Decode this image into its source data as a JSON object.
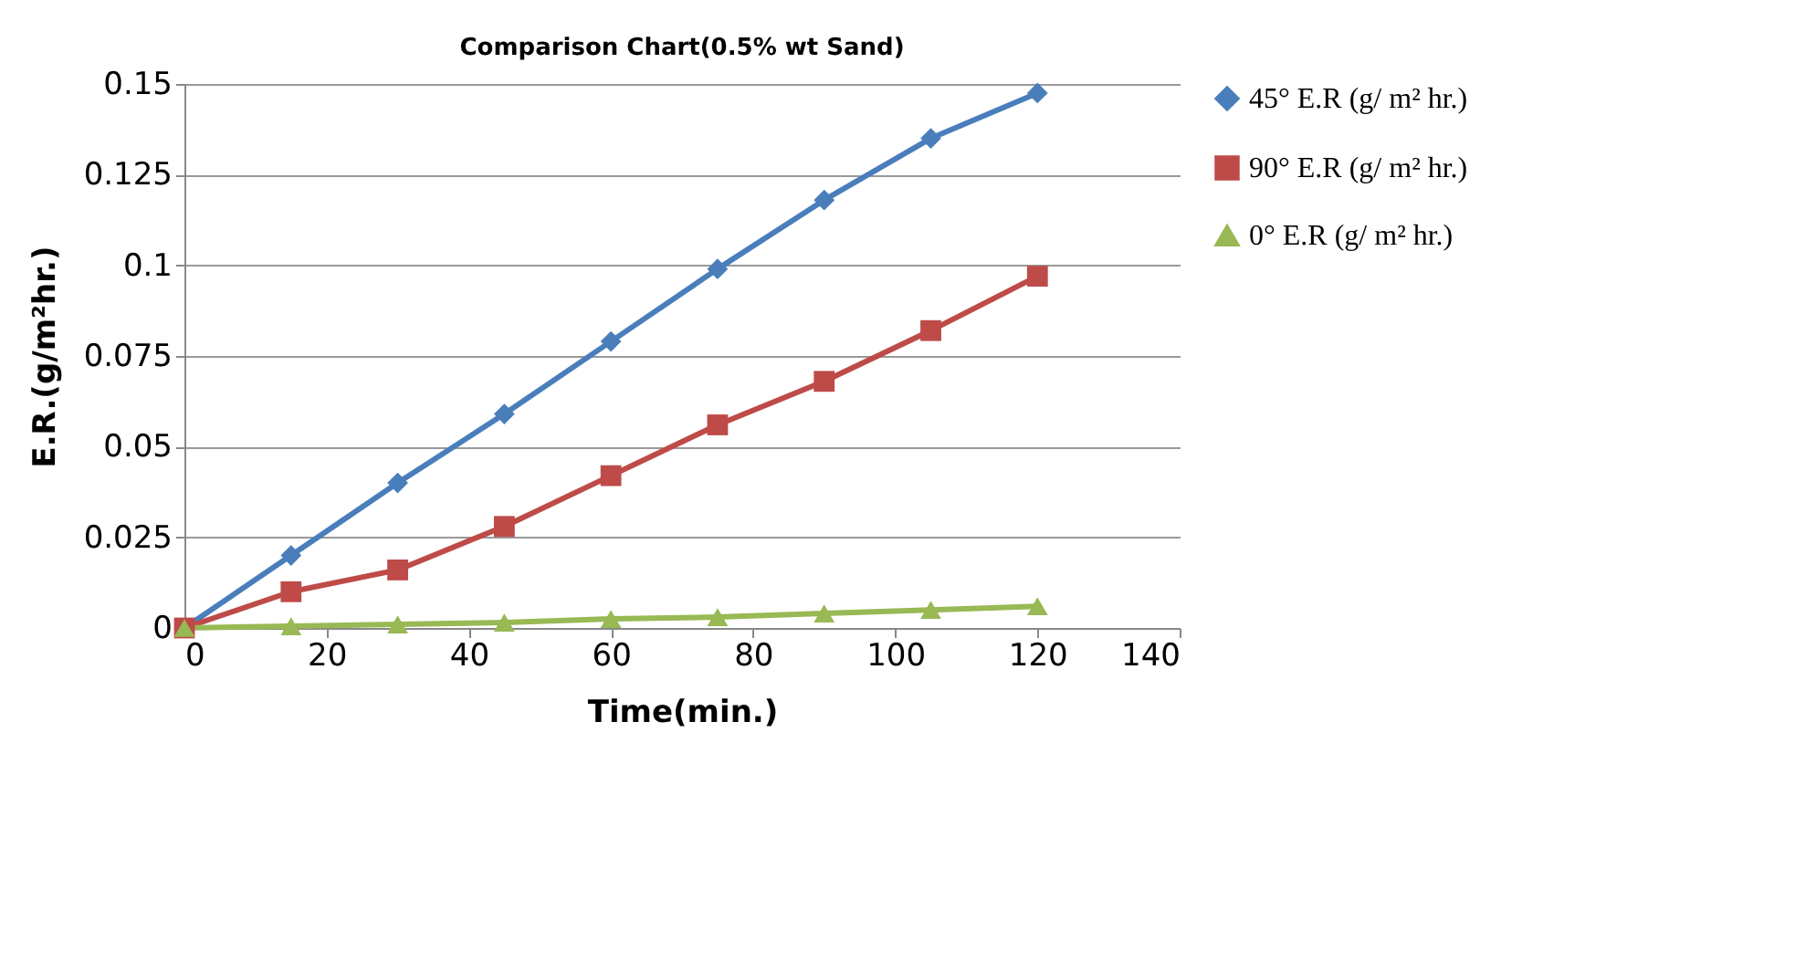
{
  "chart_data": {
    "type": "line",
    "title": "Comparison Chart(0.5% wt Sand)",
    "xlabel": "Time(min.)",
    "ylabel": "E.R.(g/m²hr.)",
    "x": [
      0,
      15,
      30,
      45,
      60,
      75,
      90,
      105,
      120
    ],
    "series": [
      {
        "name": "45° E.R (g/ m² hr.)",
        "color": "#4a7ebb",
        "marker": "diamond",
        "values": [
          0,
          0.02,
          0.04,
          0.059,
          0.079,
          0.099,
          0.118,
          0.135,
          0.1475
        ]
      },
      {
        "name": "90° E.R (g/ m² hr.)",
        "color": "#be4b48",
        "marker": "square",
        "values": [
          0,
          0.01,
          0.016,
          0.028,
          0.042,
          0.056,
          0.068,
          0.082,
          0.097
        ]
      },
      {
        "name": "0° E.R (g/ m² hr.)",
        "color": "#98b954",
        "marker": "triangle",
        "values": [
          0,
          0.0005,
          0.001,
          0.0015,
          0.0025,
          0.003,
          0.004,
          0.005,
          0.006
        ]
      }
    ],
    "xlim": [
      0,
      140
    ],
    "xticks": [
      0,
      20,
      40,
      60,
      80,
      100,
      120,
      140
    ],
    "ylim": [
      0,
      0.15
    ],
    "yticks": [
      0,
      0.025,
      0.05,
      0.075,
      0.1,
      0.125,
      0.15
    ],
    "grid": "y",
    "legend": "right",
    "line_style": "solid"
  }
}
